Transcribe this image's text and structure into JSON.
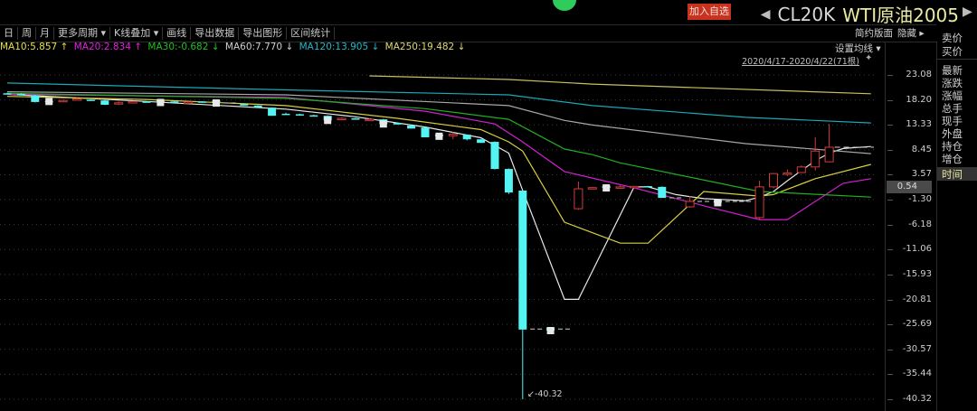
{
  "header": {
    "add_watchlist": "加入自选",
    "prev_icon": "triangle-left",
    "next_icon": "triangle-right",
    "code": "CL20K",
    "name": "WTI原油2005"
  },
  "toolbar": {
    "items": [
      "日",
      "周",
      "月",
      "更多周期 ▾",
      "K线叠加 ▾",
      "画线",
      "导出数据",
      "导出图形",
      "区间统计"
    ],
    "simple_layout": "简约版面",
    "hide": "隐藏 ▸"
  },
  "legend": [
    {
      "label": "MA10:5.857",
      "arrow": "↑",
      "color": "#e8e040"
    },
    {
      "label": "MA20:2.834",
      "arrow": "↑",
      "color": "#e020e0"
    },
    {
      "label": "MA30:-0.682",
      "arrow": "↓",
      "color": "#20c020"
    },
    {
      "label": "MA60:7.770",
      "arrow": "↓",
      "color": "#d0d0d0"
    },
    {
      "label": "MA120:13.905",
      "arrow": "↓",
      "color": "#20b8c8"
    },
    {
      "label": "MA250:19.482",
      "arrow": "↓",
      "color": "#e0d870"
    }
  ],
  "ma_setting": "设置均线 ▾",
  "range": "2020/4/17-2020/4/22(71根)",
  "price_box": "0.54",
  "low_label": "↙-40.32",
  "side_panel": {
    "top": [
      "卖价",
      "买价"
    ],
    "fields": [
      "最新",
      "涨跌",
      "涨幅",
      "总手",
      "现手",
      "外盘",
      "持仓",
      "增仓"
    ],
    "selected": "时间"
  },
  "chart_data": {
    "type": "candlestick",
    "ylim": [
      -42.6,
      26.6
    ],
    "yticks": [
      "23.08",
      "18.20",
      "13.33",
      "8.45",
      "3.57",
      "-1.30",
      "-6.18",
      "-11.06",
      "-15.93",
      "-20.81",
      "-25.69",
      "-30.57",
      "-35.44",
      "-40.32"
    ],
    "grid": true,
    "colors": {
      "up": "#d23c3c",
      "down": "#54f4f4",
      "marked": "#e8e8e8"
    },
    "last_price": 8.95,
    "candles": [
      {
        "o": 19.5,
        "h": 19.6,
        "l": 19.3,
        "c": 19.4
      },
      {
        "o": 19.4,
        "h": 19.5,
        "l": 19.2,
        "c": 19.3
      },
      {
        "o": 19.1,
        "h": 19.2,
        "l": 17.7,
        "c": 17.8
      },
      {
        "o": 18.0,
        "h": 18.05,
        "l": 17.9,
        "c": 17.9,
        "marked": true
      },
      {
        "o": 18.0,
        "h": 18.2,
        "l": 17.95,
        "c": 18.1
      },
      {
        "o": 18.3,
        "h": 18.6,
        "l": 18.2,
        "c": 18.4
      },
      {
        "o": 18.25,
        "h": 18.3,
        "l": 18.1,
        "c": 18.2
      },
      {
        "o": 18.1,
        "h": 18.15,
        "l": 17.2,
        "c": 17.25
      },
      {
        "o": 17.5,
        "h": 17.9,
        "l": 17.2,
        "c": 17.65
      },
      {
        "o": 17.6,
        "h": 17.95,
        "l": 17.5,
        "c": 17.9
      },
      {
        "o": 17.9,
        "h": 17.95,
        "l": 17.7,
        "c": 17.8
      },
      {
        "o": 18.1,
        "h": 18.15,
        "l": 17.8,
        "c": 17.7,
        "marked": true
      },
      {
        "o": 17.9,
        "h": 17.95,
        "l": 17.75,
        "c": 17.8
      },
      {
        "o": 17.75,
        "h": 17.9,
        "l": 17.7,
        "c": 17.8
      },
      {
        "o": 17.9,
        "h": 17.95,
        "l": 17.7,
        "c": 17.8
      },
      {
        "o": 18.1,
        "h": 18.15,
        "l": 17.5,
        "c": 17.6,
        "marked": true
      },
      {
        "o": 17.6,
        "h": 17.6,
        "l": 17.6,
        "c": 17.6
      },
      {
        "o": 17.4,
        "h": 17.5,
        "l": 17.1,
        "c": 17.1
      },
      {
        "o": 17.1,
        "h": 17.15,
        "l": 16.7,
        "c": 16.7
      },
      {
        "o": 16.7,
        "h": 16.75,
        "l": 15.1,
        "c": 15.1
      },
      {
        "o": 15.5,
        "h": 15.7,
        "l": 15.3,
        "c": 15.4
      },
      {
        "o": 15.4,
        "h": 15.5,
        "l": 15.2,
        "c": 15.3
      },
      {
        "o": 15.2,
        "h": 15.3,
        "l": 15.0,
        "c": 15.1
      },
      {
        "o": 15.1,
        "h": 15.2,
        "l": 14.2,
        "c": 14.2,
        "marked": true
      },
      {
        "o": 14.5,
        "h": 14.8,
        "l": 14.4,
        "c": 14.6
      },
      {
        "o": 14.6,
        "h": 14.7,
        "l": 14.5,
        "c": 14.55
      },
      {
        "o": 14.3,
        "h": 14.6,
        "l": 14.2,
        "c": 14.4
      },
      {
        "o": 14.4,
        "h": 14.5,
        "l": 13.5,
        "c": 13.5,
        "marked": true
      },
      {
        "o": 13.7,
        "h": 13.8,
        "l": 13.4,
        "c": 13.4
      },
      {
        "o": 13.2,
        "h": 13.3,
        "l": 12.6,
        "c": 12.6
      },
      {
        "o": 12.8,
        "h": 12.85,
        "l": 10.9,
        "c": 10.9
      },
      {
        "o": 11.4,
        "h": 11.5,
        "l": 11.0,
        "c": 11.1,
        "marked": true
      },
      {
        "o": 11.2,
        "h": 11.9,
        "l": 10.5,
        "c": 11.5
      },
      {
        "o": 11.4,
        "h": 11.45,
        "l": 10.3,
        "c": 10.5
      },
      {
        "o": 10.5,
        "h": 10.6,
        "l": 9.8,
        "c": 9.8
      },
      {
        "o": 10.0,
        "h": 10.1,
        "l": 4.6,
        "c": 4.7
      },
      {
        "o": 4.7,
        "h": 4.8,
        "l": -0.2,
        "c": 0.1
      },
      {
        "o": 0.47,
        "h": 0.6,
        "l": -40.32,
        "c": -26.7
      },
      {
        "o": -26.6,
        "h": -26.6,
        "l": -26.6,
        "c": -26.6
      },
      {
        "o": -26.3,
        "h": -26.3,
        "l": -26.9,
        "c": -26.9,
        "marked": true
      },
      {
        "o": -26.6,
        "h": -26.6,
        "l": -26.6,
        "c": -26.6
      },
      {
        "o": -3.07,
        "h": 2.24,
        "l": -3.3,
        "c": 0.82
      },
      {
        "o": 0.9,
        "h": 1.2,
        "l": 0.85,
        "c": 1.05
      },
      {
        "o": 1.4,
        "h": 1.4,
        "l": 1.0,
        "c": 1.0,
        "marked": true
      },
      {
        "o": 1.1,
        "h": 1.5,
        "l": 1.0,
        "c": 1.2
      },
      {
        "o": 1.2,
        "h": 1.4,
        "l": 1.1,
        "c": 1.3
      },
      {
        "o": 1.35,
        "h": 1.4,
        "l": 1.25,
        "c": 1.3
      },
      {
        "o": 1.2,
        "h": 1.3,
        "l": -0.95,
        "c": -0.95
      },
      {
        "o": -0.95,
        "h": -0.95,
        "l": -0.95,
        "c": -0.95
      },
      {
        "o": -2.7,
        "h": -0.6,
        "l": -2.9,
        "c": -1.65
      },
      {
        "o": -1.65,
        "h": -1.65,
        "l": -1.65,
        "c": -1.65
      },
      {
        "o": -1.4,
        "h": -1.4,
        "l": -1.9,
        "c": -1.9,
        "marked": true
      },
      {
        "o": -1.65,
        "h": -1.65,
        "l": -1.65,
        "c": -1.65
      },
      {
        "o": -1.65,
        "h": -1.65,
        "l": -1.65,
        "c": -1.65
      },
      {
        "o": -4.8,
        "h": 2.4,
        "l": -5.2,
        "c": 1.2
      },
      {
        "o": 1.2,
        "h": 3.9,
        "l": 0.9,
        "c": 3.8
      },
      {
        "o": 3.8,
        "h": 4.6,
        "l": 3.3,
        "c": 3.9
      },
      {
        "o": 4.0,
        "h": 5.4,
        "l": 3.9,
        "c": 5.1
      },
      {
        "o": 5.1,
        "h": 10.9,
        "l": 4.4,
        "c": 8.2
      },
      {
        "o": 6.1,
        "h": 13.5,
        "l": 6.0,
        "c": 8.95
      }
    ],
    "series": [
      {
        "name": "MA5",
        "color": "#e8e8e8",
        "points": [
          [
            0,
            19.3
          ],
          [
            10,
            17.9
          ],
          [
            20,
            16.4
          ],
          [
            25,
            14.9
          ],
          [
            30,
            12.9
          ],
          [
            34,
            10.8
          ],
          [
            36,
            7.8
          ],
          [
            37,
            0.5
          ],
          [
            40,
            -20.8
          ],
          [
            41,
            -20.8
          ],
          [
            45,
            1.2
          ],
          [
            46,
            1.2
          ],
          [
            48,
            -0.3
          ],
          [
            50,
            -1.1
          ],
          [
            53,
            -1.5
          ],
          [
            54,
            -0.8
          ],
          [
            55,
            0.3
          ],
          [
            56,
            2.4
          ],
          [
            57,
            4.4
          ],
          [
            58,
            6.3
          ],
          [
            59,
            7.8
          ],
          [
            60,
            8.7
          ],
          [
            62,
            9.1
          ]
        ]
      },
      {
        "name": "MA10",
        "color": "#d8d040",
        "points": [
          [
            0,
            18.9
          ],
          [
            10,
            18.3
          ],
          [
            20,
            17.1
          ],
          [
            28,
            14.6
          ],
          [
            34,
            12.4
          ],
          [
            36,
            10.0
          ],
          [
            37,
            8.2
          ],
          [
            40,
            -5.7
          ],
          [
            44,
            -9.8
          ],
          [
            46,
            -9.8
          ],
          [
            50,
            0.3
          ],
          [
            54,
            -0.6
          ],
          [
            55,
            -0.3
          ],
          [
            58,
            2.8
          ],
          [
            62,
            5.6
          ]
        ]
      },
      {
        "name": "MA20",
        "color": "#d020d0",
        "points": [
          [
            0,
            19.3
          ],
          [
            20,
            18.7
          ],
          [
            30,
            16.0
          ],
          [
            35,
            13.5
          ],
          [
            37,
            10.0
          ],
          [
            40,
            4.2
          ],
          [
            45,
            1.0
          ],
          [
            50,
            -2.5
          ],
          [
            54,
            -5.2
          ],
          [
            56,
            -5.2
          ],
          [
            60,
            1.9
          ],
          [
            62,
            2.8
          ]
        ]
      },
      {
        "name": "MA30",
        "color": "#20b020",
        "points": [
          [
            0,
            19.5
          ],
          [
            20,
            18.5
          ],
          [
            30,
            16.5
          ],
          [
            36,
            14.4
          ],
          [
            40,
            8.6
          ],
          [
            42,
            7.5
          ],
          [
            44,
            5.9
          ],
          [
            54,
            0.3
          ],
          [
            62,
            -0.8
          ]
        ]
      },
      {
        "name": "MA60",
        "color": "#a8a8a8",
        "points": [
          [
            0,
            19.8
          ],
          [
            20,
            19.2
          ],
          [
            36,
            17.1
          ],
          [
            40,
            14.2
          ],
          [
            42,
            13.3
          ],
          [
            53,
            9.65
          ],
          [
            62,
            7.7
          ]
        ]
      },
      {
        "name": "MA120",
        "color": "#1aa8b8",
        "points": [
          [
            0,
            21.5
          ],
          [
            21,
            20.1
          ],
          [
            36,
            19.2
          ],
          [
            42,
            17.1
          ],
          [
            53,
            14.8
          ],
          [
            62,
            13.7
          ]
        ]
      },
      {
        "name": "MA250",
        "color": "#c8c060",
        "points": [
          [
            26,
            22.9
          ],
          [
            36,
            22.2
          ],
          [
            42,
            21.3
          ],
          [
            62,
            19.4
          ]
        ]
      }
    ]
  }
}
